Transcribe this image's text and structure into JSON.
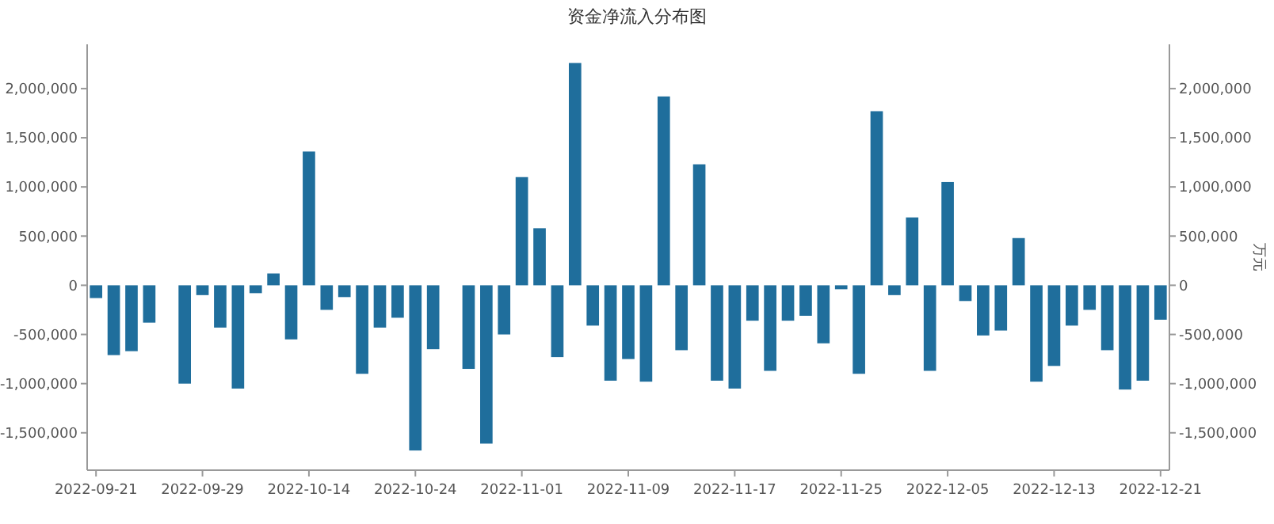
{
  "chart_data": {
    "type": "bar",
    "title": "资金净流入分布图",
    "y2label": "万元",
    "categories": [
      "2022-09-21",
      null,
      null,
      null,
      null,
      null,
      "2022-09-29",
      null,
      null,
      null,
      null,
      null,
      "2022-10-14",
      null,
      null,
      null,
      null,
      null,
      "2022-10-24",
      null,
      null,
      null,
      null,
      null,
      "2022-11-01",
      null,
      null,
      null,
      null,
      null,
      "2022-11-09",
      null,
      null,
      null,
      null,
      null,
      "2022-11-17",
      null,
      null,
      null,
      null,
      null,
      "2022-11-25",
      null,
      null,
      null,
      null,
      null,
      "2022-12-05",
      null,
      null,
      null,
      null,
      null,
      "2022-12-13",
      null,
      null,
      null,
      null,
      null,
      "2022-12-21"
    ],
    "values": [
      -130000,
      -710000,
      -670000,
      -380000,
      null,
      -1000000,
      -100000,
      -430000,
      -1050000,
      -80000,
      120000,
      -550000,
      1360000,
      -250000,
      -120000,
      -900000,
      -430000,
      -330000,
      -1680000,
      -650000,
      null,
      -850000,
      -1610000,
      -500000,
      1100000,
      580000,
      -730000,
      2260000,
      -410000,
      -970000,
      -750000,
      -980000,
      1920000,
      -660000,
      1230000,
      -970000,
      -1050000,
      -360000,
      -870000,
      -360000,
      -310000,
      -590000,
      -40000,
      -900000,
      1770000,
      -100000,
      690000,
      -870000,
      1050000,
      -160000,
      -510000,
      -460000,
      480000,
      -980000,
      -820000,
      -410000,
      -250000,
      -660000,
      -1060000,
      -970000,
      -350000
    ],
    "color": "#1f6e9c",
    "ylim": [
      -1880000,
      2450000
    ],
    "yticks": [
      {
        "value": -1500000,
        "label": "-1,500,000"
      },
      {
        "value": -1000000,
        "label": "-1,000,000"
      },
      {
        "value": -500000,
        "label": "-500,000"
      },
      0,
      {
        "value": 500000,
        "label": "500,000"
      },
      {
        "value": 1000000,
        "label": "1,000,000"
      },
      {
        "value": 1500000,
        "label": "1,500,000"
      },
      {
        "value": 2000000,
        "label": "2,000,000"
      }
    ],
    "y2lim": [
      -1880000,
      2450000
    ],
    "y2ticks": [
      {
        "value": -1500000,
        "label": "-1,500,000"
      },
      {
        "value": -1000000,
        "label": "-1,000,000"
      },
      {
        "value": -500000,
        "label": "-500,000"
      },
      0,
      {
        "value": 500000,
        "label": "500,000"
      },
      {
        "value": 1000000,
        "label": "1,000,000"
      },
      {
        "value": 1500000,
        "label": "1,500,000"
      },
      {
        "value": 2000000,
        "label": "2,000,000"
      }
    ],
    "grid": false
  }
}
